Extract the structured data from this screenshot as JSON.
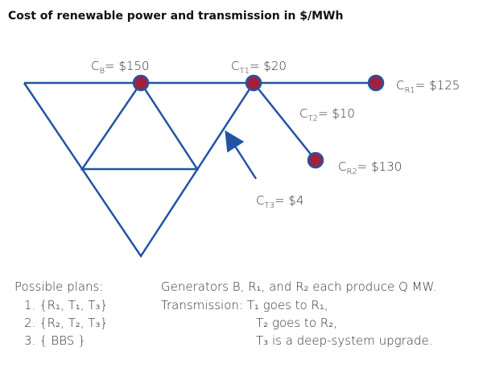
{
  "title": "Cost of renewable power and transmission in $/MWh",
  "nodes": [
    {
      "main": "C",
      "sub": "B",
      "value": "= $150"
    },
    {
      "main": "C",
      "sub": "T1",
      "value": "= $20"
    },
    {
      "main": "C",
      "sub": "R1",
      "value": "= $125"
    },
    {
      "main": "C",
      "sub": "T2",
      "value": "= $10"
    },
    {
      "main": "C",
      "sub": "R2",
      "value": "= $130"
    },
    {
      "main": "C",
      "sub": "T3",
      "value": "= $4"
    }
  ],
  "plans": {
    "heading": "Possible plans:",
    "items": [
      "1. {R₁, T₁, T₃}",
      "2. {R₂, T₂, T₃}",
      "3. { BBS }"
    ]
  },
  "notes": [
    "Generators B, R₁, and R₂ each produce Q MW.",
    "Transmission: T₁ goes to R₁,",
    "T₂ goes to R₂,",
    "T₃ is a deep-system upgrade."
  ]
}
